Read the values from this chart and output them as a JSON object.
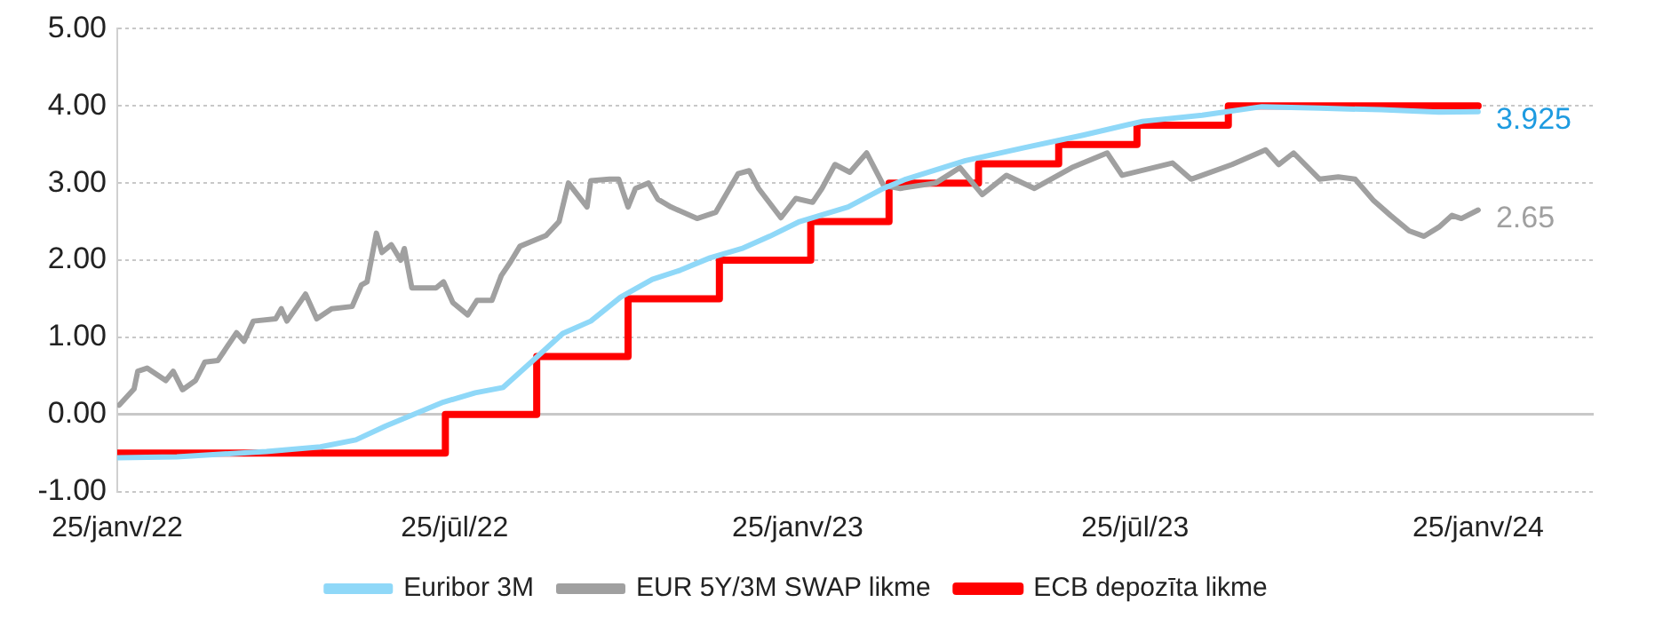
{
  "chart_data": {
    "type": "line",
    "xlim": [
      "2022-01-25",
      "2024-03-27"
    ],
    "xticks": [
      {
        "value": "2022-01-25",
        "label": "25/janv/22"
      },
      {
        "value": "2022-07-25",
        "label": "25/jūl/22"
      },
      {
        "value": "2023-01-25",
        "label": "25/janv/23"
      },
      {
        "value": "2023-07-25",
        "label": "25/jūl/23"
      },
      {
        "value": "2024-01-25",
        "label": "25/janv/24"
      }
    ],
    "ylim": [
      -1,
      5
    ],
    "yticks": [
      {
        "value": -1,
        "label": "-1.00"
      },
      {
        "value": 0,
        "label": "0.00"
      },
      {
        "value": 1,
        "label": "1.00"
      },
      {
        "value": 2,
        "label": "2.00"
      },
      {
        "value": 3,
        "label": "3.00"
      },
      {
        "value": 4,
        "label": "4.00"
      },
      {
        "value": 5,
        "label": "5.00"
      }
    ],
    "grid": "y",
    "legend": "bottom",
    "marker": "none",
    "line_style": "solid",
    "annotations": [
      {
        "text": "3.925",
        "x": "2024-01-25",
        "y": 3.925
      },
      {
        "text": "2.65",
        "x": "2024-01-25",
        "y": 2.65
      }
    ],
    "series": [
      {
        "name": "Euribor 3M",
        "color": "#8fd8f8",
        "x": [
          "2022-01-25",
          "2022-02-26",
          "2022-04-15",
          "2022-05-14",
          "2022-06-02",
          "2022-06-18",
          "2022-07-19",
          "2022-08-05",
          "2022-08-20",
          "2022-09-05",
          "2022-09-21",
          "2022-10-06",
          "2022-10-22",
          "2022-11-08",
          "2022-11-23",
          "2022-12-09",
          "2022-12-26",
          "2023-01-10",
          "2023-01-26",
          "2023-02-21",
          "2023-03-12",
          "2023-03-24",
          "2023-04-25",
          "2023-05-27",
          "2023-06-27",
          "2023-07-29",
          "2023-08-30",
          "2023-10-01",
          "2023-11-01",
          "2023-12-04",
          "2024-01-04",
          "2024-01-25"
        ],
        "values": [
          -0.56,
          -0.55,
          -0.48,
          -0.42,
          -0.33,
          -0.15,
          0.16,
          0.28,
          0.35,
          0.7,
          1.05,
          1.21,
          1.52,
          1.75,
          1.87,
          2.03,
          2.15,
          2.31,
          2.5,
          2.69,
          2.93,
          3.05,
          3.29,
          3.46,
          3.62,
          3.8,
          3.88,
          3.99,
          3.97,
          3.95,
          3.92,
          3.925
        ]
      },
      {
        "name": "EUR 5Y/3M SWAP likme",
        "color": "#a0a0a0",
        "x": [
          "2022-01-26",
          "2022-02-03",
          "2022-02-05",
          "2022-02-10",
          "2022-02-20",
          "2022-02-24",
          "2022-03-01",
          "2022-03-08",
          "2022-03-13",
          "2022-03-20",
          "2022-03-30",
          "2022-04-03",
          "2022-04-08",
          "2022-04-20",
          "2022-04-23",
          "2022-04-26",
          "2022-05-06",
          "2022-05-12",
          "2022-05-20",
          "2022-05-31",
          "2022-06-05",
          "2022-06-08",
          "2022-06-13",
          "2022-06-16",
          "2022-06-21",
          "2022-06-26",
          "2022-06-28",
          "2022-07-02",
          "2022-07-15",
          "2022-07-19",
          "2022-07-24",
          "2022-08-01",
          "2022-08-06",
          "2022-08-14",
          "2022-08-19",
          "2022-08-24",
          "2022-08-29",
          "2022-09-05",
          "2022-09-12",
          "2022-09-19",
          "2022-09-24",
          "2022-10-04",
          "2022-10-06",
          "2022-10-16",
          "2022-10-21",
          "2022-10-26",
          "2022-10-30",
          "2022-11-06",
          "2022-11-11",
          "2022-11-18",
          "2022-12-02",
          "2022-12-12",
          "2022-12-24",
          "2022-12-30",
          "2023-01-04",
          "2023-01-16",
          "2023-01-24",
          "2023-02-02",
          "2023-02-07",
          "2023-02-14",
          "2023-02-22",
          "2023-03-03",
          "2023-03-12",
          "2023-03-21",
          "2023-04-09",
          "2023-04-22",
          "2023-05-04",
          "2023-05-17",
          "2023-06-01",
          "2023-06-21",
          "2023-07-10",
          "2023-07-18",
          "2023-08-14",
          "2023-08-24",
          "2023-08-30",
          "2023-09-15",
          "2023-10-03",
          "2023-10-10",
          "2023-10-18",
          "2023-11-01",
          "2023-11-11",
          "2023-11-20",
          "2023-11-30",
          "2023-12-09",
          "2023-12-19",
          "2023-12-27",
          "2024-01-04",
          "2024-01-11",
          "2024-01-16",
          "2024-01-25"
        ],
        "values": [
          0.12,
          0.33,
          0.56,
          0.6,
          0.44,
          0.56,
          0.32,
          0.44,
          0.68,
          0.7,
          1.06,
          0.95,
          1.21,
          1.24,
          1.37,
          1.21,
          1.56,
          1.24,
          1.37,
          1.4,
          1.68,
          1.72,
          2.35,
          2.1,
          2.2,
          2.0,
          2.15,
          1.64,
          1.64,
          1.72,
          1.45,
          1.29,
          1.48,
          1.48,
          1.8,
          1.98,
          2.18,
          2.25,
          2.32,
          2.5,
          3.0,
          2.69,
          3.03,
          3.05,
          3.05,
          2.69,
          2.93,
          3.0,
          2.79,
          2.69,
          2.54,
          2.62,
          3.12,
          3.16,
          2.93,
          2.55,
          2.8,
          2.75,
          2.93,
          3.24,
          3.14,
          3.39,
          2.97,
          2.93,
          3.0,
          3.2,
          2.85,
          3.1,
          2.93,
          3.2,
          3.39,
          3.1,
          3.26,
          3.05,
          3.1,
          3.24,
          3.43,
          3.24,
          3.39,
          3.05,
          3.08,
          3.05,
          2.77,
          2.58,
          2.38,
          2.31,
          2.43,
          2.58,
          2.54,
          2.65
        ]
      },
      {
        "name": "ECB depozīta likme",
        "type": "step",
        "color": "#ff0000",
        "x": [
          "2022-01-25",
          "2022-07-20",
          "2022-09-07",
          "2022-10-26",
          "2022-12-14",
          "2023-02-01",
          "2023-03-15",
          "2023-05-02",
          "2023-06-14",
          "2023-07-26",
          "2023-09-13",
          "2024-01-25"
        ],
        "values": [
          -0.5,
          0,
          0.75,
          1.5,
          2,
          2.5,
          3,
          3.25,
          3.5,
          3.75,
          4,
          4
        ]
      }
    ]
  }
}
